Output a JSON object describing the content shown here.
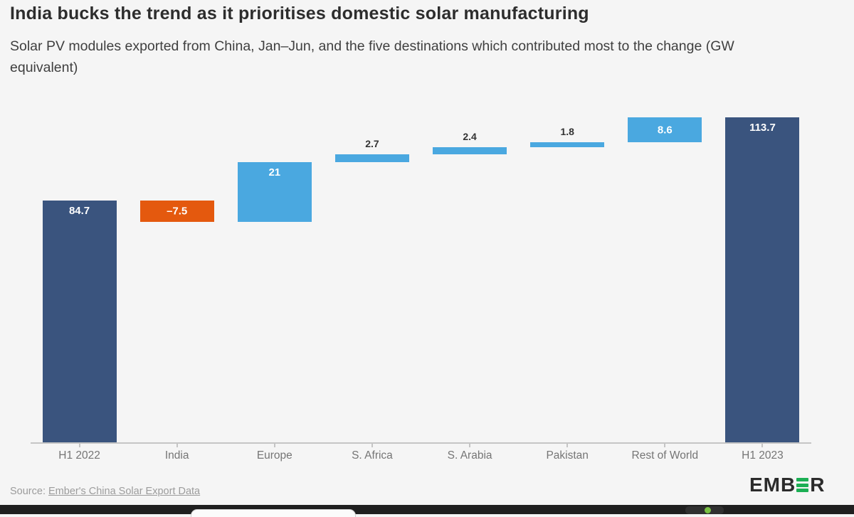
{
  "header": {
    "title": "India bucks the trend as it prioritises domestic solar manufacturing",
    "subtitle": "Solar PV modules exported from China, Jan–Jun, and the five destinations which contributed most to the change (GW equivalent)"
  },
  "chart_data": {
    "type": "bar",
    "subtype": "waterfall",
    "unit": "GW",
    "ylim": [
      0,
      120
    ],
    "grid": false,
    "legend": "none",
    "categories": [
      "H1 2022",
      "India",
      "Europe",
      "S. Africa",
      "S. Arabia",
      "Pakistan",
      "Rest of World",
      "H1 2023"
    ],
    "bars": [
      {
        "category": "H1 2022",
        "value": 84.7,
        "display": "84.7",
        "kind": "total",
        "label_placement": "inside-top"
      },
      {
        "category": "India",
        "value": -7.5,
        "display": "–7.5",
        "kind": "decrease",
        "label_placement": "inside-middle"
      },
      {
        "category": "Europe",
        "value": 21,
        "display": "21",
        "kind": "increase",
        "label_placement": "inside-top"
      },
      {
        "category": "S. Africa",
        "value": 2.7,
        "display": "2.7",
        "kind": "increase",
        "label_placement": "above"
      },
      {
        "category": "S. Arabia",
        "value": 2.4,
        "display": "2.4",
        "kind": "increase",
        "label_placement": "above"
      },
      {
        "category": "Pakistan",
        "value": 1.8,
        "display": "1.8",
        "kind": "increase",
        "label_placement": "above"
      },
      {
        "category": "Rest of World",
        "value": 8.6,
        "display": "8.6",
        "kind": "increase",
        "label_placement": "inside-middle"
      },
      {
        "category": "H1 2023",
        "value": 113.7,
        "display": "113.7",
        "kind": "total",
        "label_placement": "inside-top"
      }
    ],
    "colors": {
      "total": "#3A547E",
      "increase": "#4AA8E0",
      "decrease": "#E4590E",
      "axis": "#C5C5C5",
      "category_label": "#757575",
      "value_label_inside": "#FFFFFF",
      "value_label_above": "#333333"
    }
  },
  "footer": {
    "source_prefix": "Source:",
    "source_link": "Ember's China Solar Export Data",
    "logo_text_left": "EMB",
    "logo_text_right": "R",
    "logo_green": "#1CAF54"
  },
  "taskbar": {
    "background": "#1F1F1F",
    "status_dot_color": "#79C043"
  }
}
